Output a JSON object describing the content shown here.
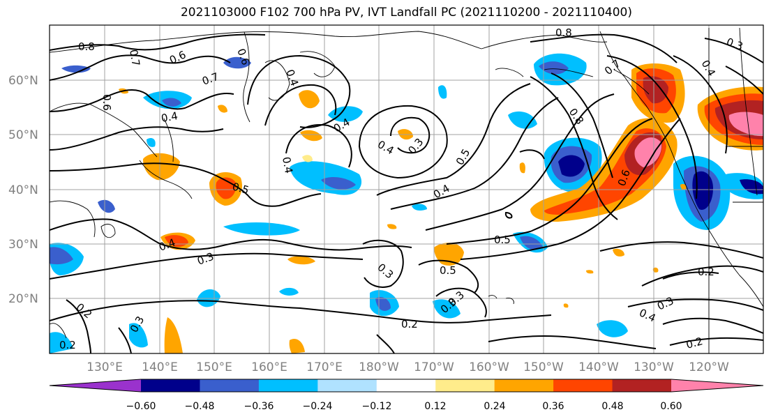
{
  "title": "2021103000 F102 700 hPa PV, IVT Landfall PC (2021110200 - 2021110400)",
  "map": {
    "lat_labels": [
      "60°N",
      "50°N",
      "40°N",
      "30°N",
      "20°N"
    ],
    "lon_labels": [
      "130°E",
      "140°E",
      "150°E",
      "160°E",
      "170°E",
      "180°W",
      "170°W",
      "160°W",
      "150°W",
      "140°W",
      "130°W",
      "120°W"
    ],
    "contour_labels": [
      {
        "text": "0.8",
        "id": "c08a"
      },
      {
        "text": "0.7",
        "id": "c07a"
      },
      {
        "text": "0.6",
        "id": "c06a"
      },
      {
        "text": "0.6",
        "id": "c06b"
      },
      {
        "text": "0.7",
        "id": "c07b"
      },
      {
        "text": "0.6",
        "id": "c06c"
      },
      {
        "text": "0.4",
        "id": "c04a"
      },
      {
        "text": "0.4",
        "id": "c04b"
      },
      {
        "text": "0.5",
        "id": "c05a"
      },
      {
        "text": "0.4",
        "id": "c04c"
      },
      {
        "text": "0.4",
        "id": "c04d"
      },
      {
        "text": "0.3",
        "id": "c03a"
      },
      {
        "text": "0.4",
        "id": "c04e"
      },
      {
        "text": "0.5",
        "id": "c05b"
      },
      {
        "text": "0.4",
        "id": "c04f"
      },
      {
        "text": "0.8",
        "id": "c08b"
      },
      {
        "text": "0.8",
        "id": "c08c"
      },
      {
        "text": "0.7",
        "id": "c07c"
      },
      {
        "text": "0.3",
        "id": "c03b"
      },
      {
        "text": "0.4",
        "id": "c04g"
      },
      {
        "text": "0.6",
        "id": "c06d"
      },
      {
        "text": "0.4",
        "id": "c04h"
      },
      {
        "text": "0.3",
        "id": "c03c"
      },
      {
        "text": "0.5",
        "id": "c05c"
      },
      {
        "text": "0.5",
        "id": "c05d"
      },
      {
        "text": "0.3",
        "id": "c03d"
      },
      {
        "text": "0.3",
        "id": "c03e"
      },
      {
        "text": "0.2",
        "id": "c02a"
      },
      {
        "text": "0.3",
        "id": "c03f"
      },
      {
        "text": "0.2",
        "id": "c02b"
      },
      {
        "text": "0.2",
        "id": "c02c"
      },
      {
        "text": "0.4",
        "id": "c04i"
      },
      {
        "text": "0.3",
        "id": "c03g"
      },
      {
        "text": "0.2",
        "id": "c02d"
      },
      {
        "text": "0.2",
        "id": "c02e"
      },
      {
        "text": "0.3",
        "id": "c03h"
      }
    ]
  },
  "colorbar": {
    "tick_labels": [
      "−0.60",
      "−0.48",
      "−0.36",
      "−0.24",
      "−0.12",
      "0.12",
      "0.24",
      "0.36",
      "0.48",
      "0.60"
    ],
    "colors": [
      "#9a32cd",
      "#00008b",
      "#3a5fcd",
      "#00bfff",
      "#b0e2ff",
      "#ffffff",
      "#ffec8b",
      "#ffa500",
      "#ff4500",
      "#b22222",
      "#ff82ab"
    ]
  }
}
